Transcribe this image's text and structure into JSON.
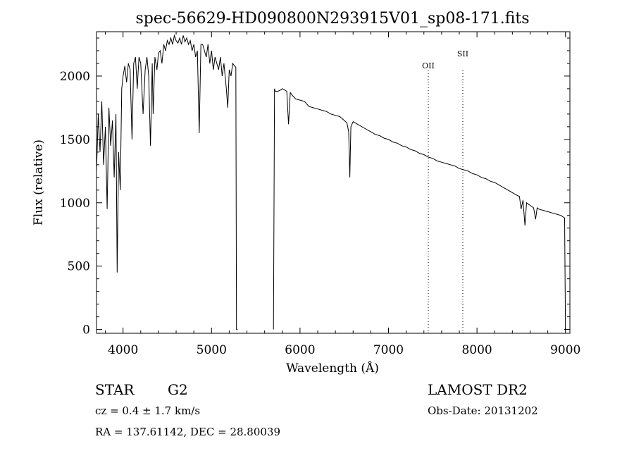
{
  "chart_data": {
    "type": "line",
    "title": "spec-56629-HD090800N293915V01_sp08-171.fits",
    "xlabel": "Wavelength (Å)",
    "ylabel": "Flux (relative)",
    "xlim": [
      3700,
      9050
    ],
    "ylim": [
      -30,
      2350
    ],
    "xticks": [
      "4000",
      "5000",
      "6000",
      "7000",
      "8000",
      "9000"
    ],
    "xtick_values": [
      4000,
      5000,
      6000,
      7000,
      8000,
      9000
    ],
    "yticks": [
      "0",
      "500",
      "1000",
      "1500",
      "2000"
    ],
    "ytick_values": [
      0,
      500,
      1000,
      1500,
      2000
    ],
    "grid": false,
    "series": [
      {
        "name": "flux",
        "segments": [
          {
            "x": [
              3700,
              3720,
              3740,
              3760,
              3780,
              3800,
              3820,
              3840,
              3860,
              3880,
              3900,
              3920,
              3933,
              3950,
              3968,
              3985,
              4000,
              4020,
              4040,
              4060,
              4080,
              4101,
              4120,
              4140,
              4160,
              4180,
              4200,
              4226,
              4250,
              4270,
              4290,
              4310,
              4330,
              4340,
              4360,
              4383,
              4400,
              4420,
              4440,
              4460,
              4480,
              4500,
              4520,
              4540,
              4560,
              4580,
              4600,
              4620,
              4640,
              4660,
              4680,
              4700,
              4720,
              4740,
              4760,
              4780,
              4800,
              4820,
              4840,
              4861,
              4880,
              4900,
              4920,
              4940,
              4960,
              4980,
              5000,
              5020,
              5040,
              5060,
              5080,
              5100,
              5120,
              5140,
              5167,
              5183,
              5200,
              5220,
              5240,
              5260,
              5275,
              5282,
              5295
            ],
            "y": [
              1250,
              1700,
              1400,
              1800,
              1300,
              1600,
              950,
              1750,
              1450,
              1650,
              1200,
              1700,
              450,
              1400,
              1100,
              1900,
              2000,
              2080,
              1950,
              2100,
              2050,
              1500,
              2100,
              2150,
              1900,
              2150,
              2100,
              1700,
              2050,
              2150,
              2000,
              1450,
              2100,
              1700,
              2150,
              2050,
              2180,
              2200,
              2100,
              2250,
              2200,
              2280,
              2250,
              2300,
              2250,
              2320,
              2280,
              2260,
              2300,
              2250,
              2320,
              2270,
              2300,
              2250,
              2280,
              2200,
              2250,
              2150,
              2200,
              1550,
              2250,
              2250,
              2200,
              2150,
              2250,
              2100,
              2200,
              2050,
              2150,
              2100,
              2050,
              2150,
              2000,
              2100,
              1900,
              1750,
              2050,
              2000,
              2100,
              2080,
              2070,
              0,
              0
            ]
          },
          {
            "x": [
              5700,
              5712,
              5720,
              5750,
              5780,
              5800,
              5850,
              5870,
              5890,
              5910,
              5950,
              6000,
              6050,
              6100,
              6150,
              6200,
              6250,
              6300,
              6350,
              6400,
              6450,
              6500,
              6530,
              6550,
              6563,
              6575,
              6600,
              6650,
              6700,
              6750,
              6800,
              6850,
              6900,
              6950,
              7000,
              7050,
              7100,
              7150,
              7200,
              7250,
              7300,
              7350,
              7400,
              7450,
              7500,
              7550,
              7600,
              7650,
              7700,
              7750,
              7800,
              7850,
              7900,
              7950,
              8000,
              8050,
              8100,
              8150,
              8200,
              8250,
              8300,
              8350,
              8400,
              8450,
              8480,
              8498,
              8520,
              8542,
              8560,
              8600,
              8640,
              8662,
              8680,
              8700,
              8750,
              8800,
              8850,
              8900,
              8950,
              8990,
              9000
            ],
            "y": [
              0,
              1900,
              1880,
              1880,
              1890,
              1900,
              1880,
              1620,
              1870,
              1850,
              1820,
              1810,
              1800,
              1760,
              1750,
              1740,
              1730,
              1720,
              1700,
              1690,
              1680,
              1650,
              1630,
              1560,
              1200,
              1600,
              1640,
              1620,
              1600,
              1580,
              1560,
              1540,
              1530,
              1510,
              1500,
              1480,
              1470,
              1450,
              1440,
              1420,
              1410,
              1390,
              1380,
              1360,
              1350,
              1330,
              1320,
              1310,
              1300,
              1290,
              1270,
              1260,
              1250,
              1230,
              1220,
              1200,
              1190,
              1170,
              1160,
              1140,
              1120,
              1100,
              1080,
              1060,
              1050,
              950,
              1020,
              820,
              1000,
              980,
              960,
              870,
              960,
              950,
              940,
              930,
              920,
              910,
              900,
              880,
              0
            ]
          }
        ]
      }
    ],
    "annotations": [
      {
        "label": "OII",
        "x": 7450
      },
      {
        "label": "SII",
        "x": 7840
      }
    ]
  },
  "info": {
    "object_type": "STAR",
    "subclass": "G2",
    "survey": "LAMOST DR2",
    "cz": "cz = 0.4 ± 1.7 km/s",
    "obs_date": "Obs-Date: 20131202",
    "coords": "RA = 137.61142, DEC =  28.80039"
  }
}
